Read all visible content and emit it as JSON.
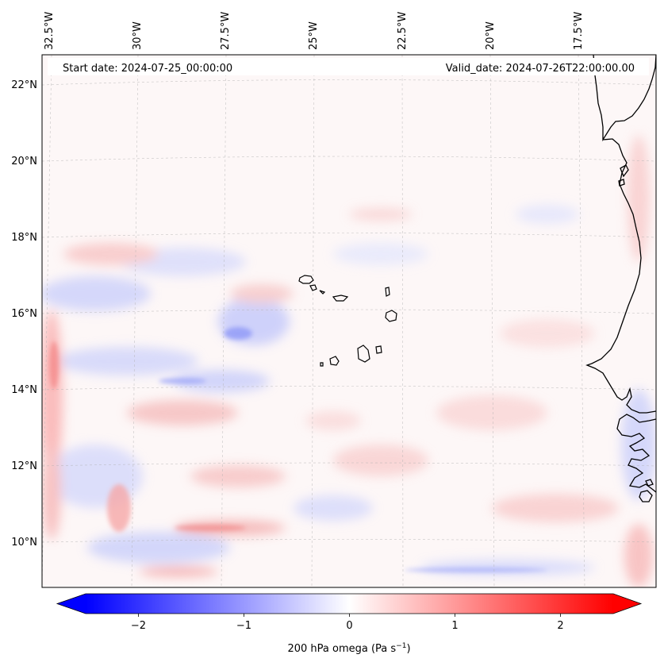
{
  "header": {
    "start_date": "Start date: 2024-07-25_00:00:00",
    "valid_date": "Valid_date: 2024-07-26T22:00:00.00"
  },
  "map": {
    "longitude_labels": [
      "32.5°W",
      "30°W",
      "27.5°W",
      "25°W",
      "22.5°W",
      "20°W",
      "17.5°W"
    ],
    "latitude_labels": [
      "22°N",
      "20°N",
      "18°N",
      "16°N",
      "14°N",
      "12°N",
      "10°N"
    ],
    "features": [
      "cape-verde-islands",
      "west-africa-coastline"
    ]
  },
  "colorbar": {
    "label": "200 hPa omega (Pa s",
    "label_exponent": "−1",
    "label_close": ")",
    "ticks": [
      "−2",
      "−1",
      "0",
      "1",
      "2"
    ],
    "tick_values": [
      -2,
      -1,
      0,
      1,
      2
    ],
    "range": [
      -2.5,
      2.5
    ],
    "colormap": "bwr",
    "extend": "both",
    "colors": {
      "negative": "#0000ff",
      "zero": "#ffffff",
      "positive": "#ff0000"
    }
  },
  "chart_data": {
    "type": "heatmap",
    "title": "",
    "variable": "200 hPa omega",
    "units": "Pa s^-1",
    "lon_range": [
      -33,
      -15
    ],
    "lat_range": [
      9,
      23
    ],
    "value_range": [
      -2.5,
      2.5
    ],
    "start_date": "2024-07-25_00:00:00",
    "valid_date": "2024-07-26T22:00:00.00"
  }
}
